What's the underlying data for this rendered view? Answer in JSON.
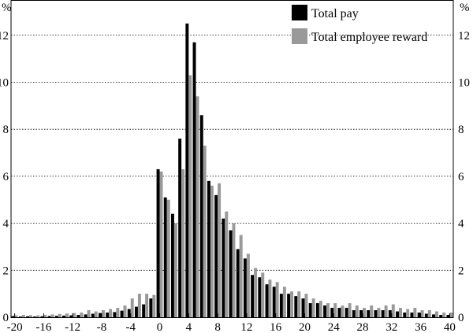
{
  "chart_data": {
    "type": "bar",
    "y_unit_left": "%",
    "y_unit_right": "%",
    "xlim": [
      -20.5,
      40.5
    ],
    "ylim": [
      0,
      13.5
    ],
    "x_ticks": [
      -20,
      -16,
      -12,
      -8,
      -4,
      0,
      4,
      8,
      12,
      16,
      20,
      24,
      28,
      32,
      36,
      40
    ],
    "y_ticks": [
      0,
      2,
      4,
      6,
      8,
      10,
      12
    ],
    "grid": true,
    "legend_position": "top-right",
    "colors": {
      "Total pay": "#000000",
      "Total employee reward": "#999999"
    },
    "x": [
      -20,
      -19,
      -18,
      -17,
      -16,
      -15,
      -14,
      -13,
      -12,
      -11,
      -10,
      -9,
      -8,
      -7,
      -6,
      -5,
      -4,
      -3,
      -2,
      -1,
      0,
      1,
      2,
      3,
      4,
      5,
      6,
      7,
      8,
      9,
      10,
      11,
      12,
      13,
      14,
      15,
      16,
      17,
      18,
      19,
      20,
      21,
      22,
      23,
      24,
      25,
      26,
      27,
      28,
      29,
      30,
      31,
      32,
      33,
      34,
      35,
      36,
      37,
      38,
      39,
      40
    ],
    "series": [
      {
        "name": "Total pay",
        "values": [
          0.05,
          0.03,
          0.04,
          0.03,
          0.04,
          0.05,
          0.06,
          0.07,
          0.08,
          0.1,
          0.12,
          0.15,
          0.18,
          0.2,
          0.22,
          0.28,
          0.35,
          0.45,
          0.55,
          0.8,
          6.3,
          5.1,
          4.4,
          7.6,
          12.5,
          11.7,
          8.6,
          5.8,
          5.2,
          4.2,
          3.7,
          2.9,
          2.5,
          1.8,
          1.7,
          1.4,
          1.3,
          1.0,
          1.0,
          0.9,
          0.8,
          0.6,
          0.6,
          0.5,
          0.4,
          0.4,
          0.4,
          0.3,
          0.3,
          0.3,
          0.3,
          0.3,
          0.3,
          0.25,
          0.2,
          0.2,
          0.2,
          0.15,
          0.12,
          0.1,
          0.1
        ]
      },
      {
        "name": "Total employee reward",
        "values": [
          0.08,
          0.1,
          0.09,
          0.08,
          0.1,
          0.12,
          0.14,
          0.16,
          0.18,
          0.2,
          0.3,
          0.25,
          0.3,
          0.35,
          0.4,
          0.5,
          0.8,
          1.0,
          1.0,
          0.95,
          6.2,
          5.0,
          4.0,
          6.3,
          10.3,
          9.4,
          7.3,
          5.6,
          5.7,
          4.5,
          4.0,
          3.5,
          2.7,
          2.1,
          1.9,
          1.6,
          1.5,
          1.3,
          1.1,
          1.1,
          1.0,
          0.8,
          0.7,
          0.6,
          0.6,
          0.5,
          0.6,
          0.5,
          0.4,
          0.5,
          0.4,
          0.5,
          0.55,
          0.4,
          0.35,
          0.4,
          0.3,
          0.3,
          0.25,
          0.2,
          0.2
        ]
      }
    ]
  }
}
